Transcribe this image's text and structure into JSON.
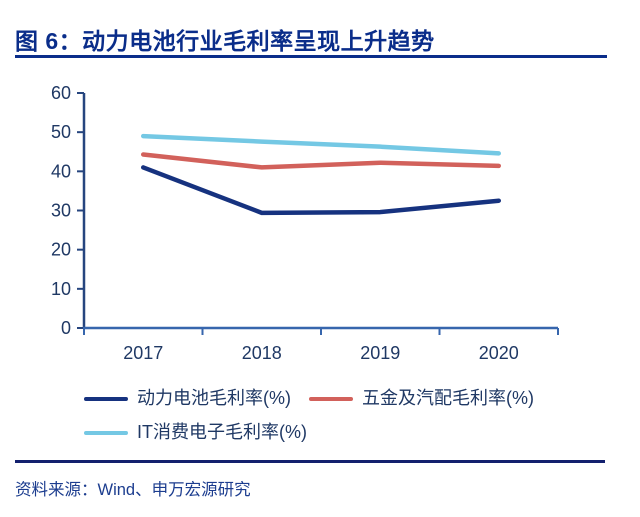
{
  "title": "图 6：动力电池行业毛利率呈现上升趋势",
  "source_note": "资料来源：Wind、申万宏源研究",
  "colors": {
    "title": "#0a2d8a",
    "text": "#1f3864",
    "axis": "#26457f",
    "axis_light": "#3766ad",
    "rule": "#13206e",
    "series": {
      "power_battery": "#16327f",
      "hardware_auto": "#d2615b",
      "it_consumer": "#74c8e4"
    }
  },
  "chart_data": {
    "type": "line",
    "categories": [
      "2017",
      "2018",
      "2019",
      "2020"
    ],
    "series": [
      {
        "name": "动力电池毛利率(%)",
        "color_key": "power_battery",
        "values": [
          41.0,
          29.4,
          29.6,
          32.5
        ]
      },
      {
        "name": "五金及汽配毛利率(%)",
        "color_key": "hardware_auto",
        "values": [
          44.3,
          41.0,
          42.2,
          41.4
        ]
      },
      {
        "name": "IT消费电子毛利率(%)",
        "color_key": "it_consumer",
        "values": [
          49.0,
          47.6,
          46.3,
          44.6
        ]
      }
    ],
    "ylim": [
      0,
      60
    ],
    "ytick_step": 10,
    "xlabel": "",
    "ylabel": "",
    "grid": false,
    "legend_position": "bottom-left"
  }
}
